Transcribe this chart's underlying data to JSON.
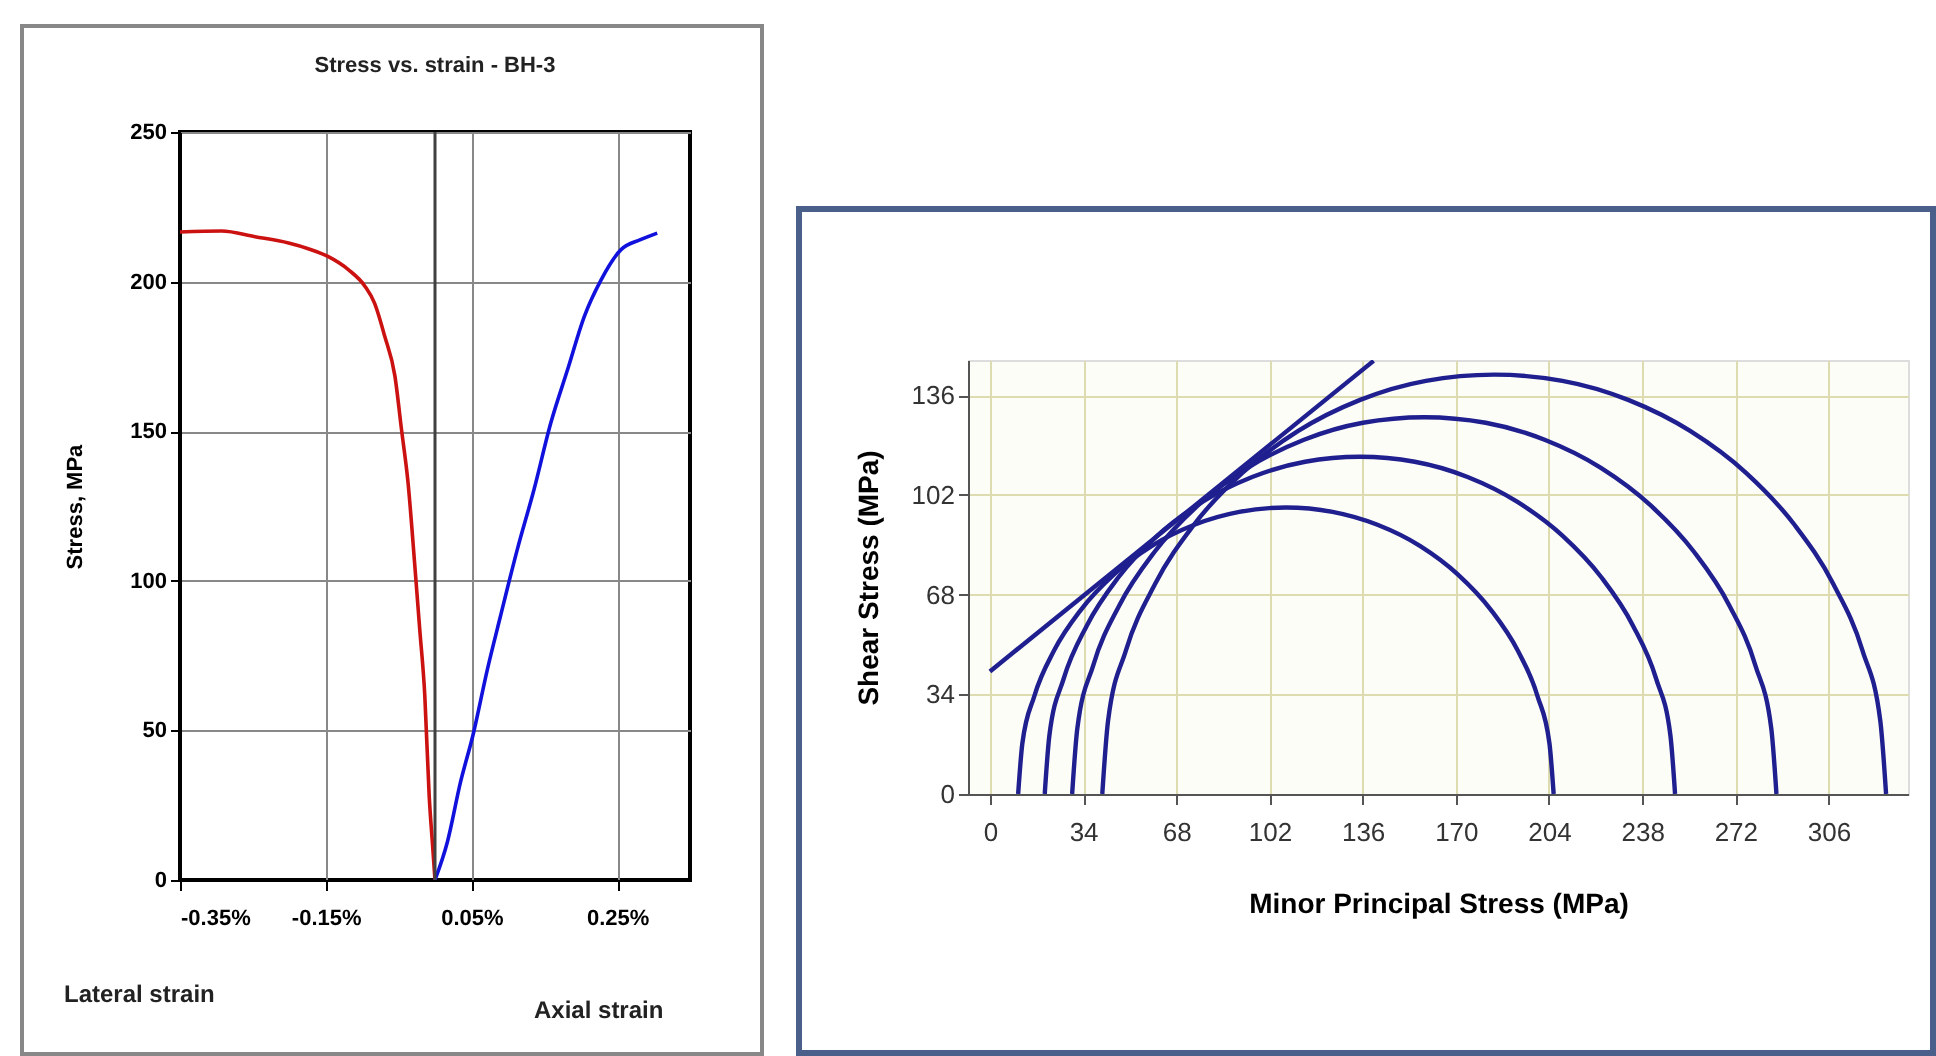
{
  "chart_data": [
    {
      "type": "line",
      "title": "Stress vs. strain - BH-3",
      "ylabel": "Stress, MPa",
      "annotations": [
        "Lateral strain",
        "Axial strain"
      ],
      "xlim": [
        -0.35,
        0.35
      ],
      "ylim": [
        0,
        250
      ],
      "xticks": [
        {
          "value": -0.35,
          "label": "-0.35%"
        },
        {
          "value": -0.15,
          "label": "-0.15%"
        },
        {
          "value": 0.05,
          "label": "0.05%"
        },
        {
          "value": 0.25,
          "label": "0.25%"
        }
      ],
      "yticks": [
        0,
        50,
        100,
        150,
        200,
        250
      ],
      "grid": true,
      "ref_lines": [
        {
          "axis": "x",
          "value": 0,
          "color": "#404040"
        }
      ],
      "series": [
        {
          "color": "#cc1111",
          "x": [
            -0.35,
            -0.293,
            -0.247,
            -0.201,
            -0.174,
            -0.147,
            -0.119,
            -0.096,
            -0.083,
            -0.069,
            -0.055,
            -0.046,
            -0.037,
            -0.028,
            -0.021,
            -0.014,
            -0.008,
            -0.003,
            0.0
          ],
          "values": [
            216.6,
            216.9,
            215,
            212.9,
            211,
            208.4,
            204,
            198.4,
            192.8,
            181.7,
            168.4,
            150.6,
            132.8,
            106,
            83.9,
            61.6,
            28.2,
            10.5,
            0
          ]
        },
        {
          "color": "#1111dd",
          "x": [
            0.0,
            0.017,
            0.035,
            0.052,
            0.072,
            0.09,
            0.113,
            0.136,
            0.159,
            0.182,
            0.205,
            0.228,
            0.255,
            0.282,
            0.305
          ],
          "values": [
            0,
            12.7,
            32.7,
            48.3,
            70.5,
            88.3,
            110.5,
            130.6,
            152.8,
            170.6,
            188.4,
            200.6,
            210.6,
            214,
            216.2
          ]
        }
      ]
    },
    {
      "type": "line",
      "xlabel": "Minor Principal Stress (MPa)",
      "ylabel": "Shear Stress (MPa)",
      "xlim": [
        -8,
        335
      ],
      "ylim": [
        0,
        148
      ],
      "xticks": [
        0,
        34,
        68,
        102,
        136,
        170,
        204,
        238,
        272,
        306
      ],
      "yticks": [
        0,
        34,
        68,
        102,
        136
      ],
      "grid": true,
      "series": [
        {
          "color": "#1f1f8f",
          "x": [
            10.3,
            11.8,
            16.2,
            23.4,
            33.2,
            45.2,
            59.1,
            74.6,
            91.0,
            108,
            125.0,
            141.4,
            156.9,
            170.8,
            182.8,
            192.6,
            199.8,
            204.2,
            205.7
          ],
          "values": [
            0,
            17.0,
            33.4,
            48.9,
            62.8,
            74.8,
            84.6,
            91.8,
            96.2,
            97.7,
            96.2,
            91.8,
            84.6,
            74.8,
            62.8,
            48.9,
            33.4,
            17.0,
            0
          ]
        },
        {
          "color": "#1f1f8f",
          "x": [
            20,
            21.7,
            26.9,
            35.4,
            46.9,
            61.1,
            77.5,
            95.7,
            115,
            135,
            155,
            174.3,
            192.5,
            208.9,
            223.1,
            234.6,
            243.1,
            248.3,
            250
          ],
          "values": [
            0,
            20,
            39.3,
            57.5,
            73.9,
            88.1,
            99.6,
            108.1,
            113.3,
            115,
            113.3,
            108.1,
            99.6,
            88.1,
            73.9,
            57.5,
            39.3,
            20,
            0
          ]
        },
        {
          "color": "#1f1f8f",
          "x": [
            30,
            31.9,
            37.7,
            47.2,
            60.1,
            75.9,
            94.2,
            114.6,
            136.1,
            158.5,
            180.9,
            202.4,
            222.8,
            241.1,
            256.9,
            269.8,
            279.3,
            285.1,
            287
          ],
          "values": [
            0,
            22.4,
            43.9,
            64.3,
            82.6,
            98.4,
            111.3,
            120.8,
            126.6,
            128.5,
            126.6,
            120.8,
            111.3,
            98.4,
            82.6,
            64.3,
            43.9,
            22.4,
            0
          ]
        },
        {
          "color": "#1f1f8f",
          "x": [
            41,
            43.1,
            49.6,
            60.2,
            74.5,
            92.1,
            112.5,
            135.1,
            159.1,
            184,
            208.9,
            232.9,
            255.5,
            275.9,
            293.5,
            307.8,
            318.4,
            324.9,
            327
          ],
          "values": [
            0,
            24.9,
            48.9,
            71.5,
            91.9,
            109.5,
            123.8,
            134.4,
            140.9,
            143,
            140.9,
            134.4,
            123.8,
            109.5,
            91.9,
            71.5,
            48.9,
            24.9,
            0
          ]
        },
        {
          "color": "#1f1f8f",
          "x": [
            0,
            140
          ],
          "values": [
            41.8,
            147.7
          ]
        }
      ]
    }
  ]
}
